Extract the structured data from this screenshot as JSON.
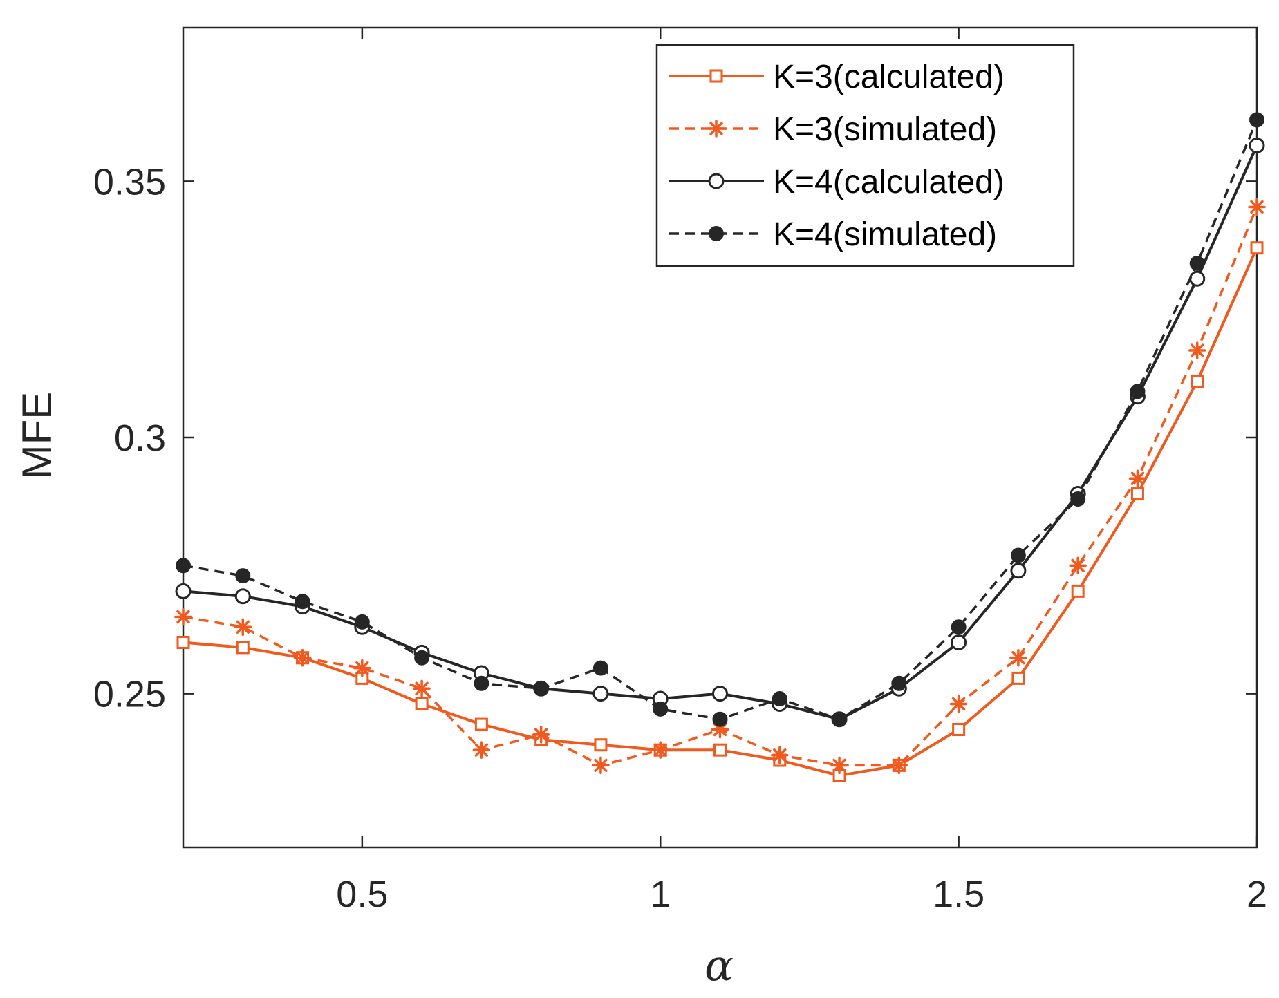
{
  "chart_data": {
    "type": "line",
    "xlabel": "α",
    "ylabel": "MFE",
    "xlim": [
      0.2,
      2.0
    ],
    "ylim": [
      0.22,
      0.38
    ],
    "xticks": [
      0.5,
      1,
      1.5,
      2
    ],
    "xtick_labels": [
      "0.5",
      "1",
      "1.5",
      "2"
    ],
    "yticks": [
      0.25,
      0.3,
      0.35
    ],
    "ytick_labels": [
      "0.25",
      "0.3",
      "0.35"
    ],
    "grid": false,
    "legend_position": "top-right",
    "x": [
      0.2,
      0.3,
      0.4,
      0.5,
      0.6,
      0.7,
      0.8,
      0.9,
      1.0,
      1.1,
      1.2,
      1.3,
      1.4,
      1.5,
      1.6,
      1.7,
      1.8,
      1.9,
      2.0
    ],
    "series": [
      {
        "name": "K=3(calculated)",
        "color": "#f05a1e",
        "line": "solid",
        "marker": "square",
        "values": [
          0.26,
          0.259,
          0.257,
          0.253,
          0.248,
          0.244,
          0.241,
          0.24,
          0.239,
          0.239,
          0.237,
          0.234,
          0.236,
          0.243,
          0.253,
          0.27,
          0.289,
          0.311,
          0.337
        ]
      },
      {
        "name": "K=3(simulated)",
        "color": "#f05a1e",
        "line": "dashed",
        "marker": "asterisk",
        "values": [
          0.265,
          0.263,
          0.257,
          0.255,
          0.251,
          0.239,
          0.242,
          0.236,
          0.239,
          0.243,
          0.238,
          0.236,
          0.236,
          0.248,
          0.257,
          0.275,
          0.292,
          0.317,
          0.345
        ]
      },
      {
        "name": "K=4(calculated)",
        "color": "#262626",
        "line": "solid",
        "marker": "open-circle",
        "values": [
          0.27,
          0.269,
          0.267,
          0.263,
          0.258,
          0.254,
          0.251,
          0.25,
          0.249,
          0.25,
          0.248,
          0.245,
          0.251,
          0.26,
          0.274,
          0.289,
          0.308,
          0.331,
          0.357
        ]
      },
      {
        "name": "K=4(simulated)",
        "color": "#262626",
        "line": "dashed",
        "marker": "filled-circle",
        "values": [
          0.275,
          0.273,
          0.268,
          0.264,
          0.257,
          0.252,
          0.251,
          0.255,
          0.247,
          0.245,
          0.249,
          0.245,
          0.252,
          0.263,
          0.277,
          0.288,
          0.309,
          0.334,
          0.362
        ]
      }
    ]
  }
}
